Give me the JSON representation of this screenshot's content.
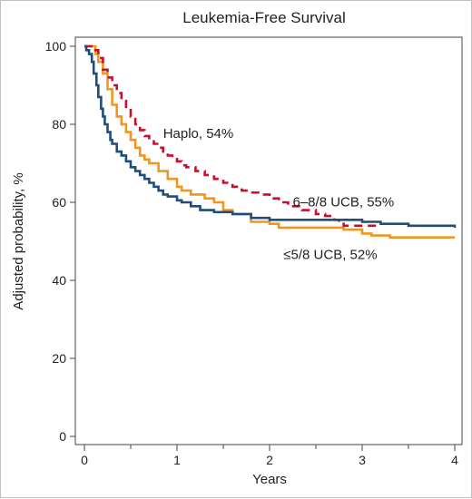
{
  "chart_data": {
    "type": "line",
    "title": "Leukemia-Free Survival",
    "xlabel": "Years",
    "ylabel": "Adjusted probability, %",
    "xlim": [
      0,
      4
    ],
    "ylim": [
      0,
      100
    ],
    "xticks": [
      "0",
      "1",
      "2",
      "3",
      "4"
    ],
    "yticks": [
      "0",
      "20",
      "40",
      "60",
      "80",
      "100"
    ],
    "grid": false,
    "legend": "none",
    "annotations": [
      {
        "id": "haplo",
        "text": "Haplo, 54%",
        "x": 0.85,
        "y": 76.5
      },
      {
        "id": "ucb68",
        "text": "6–8/8 UCB, 55%",
        "x": 2.25,
        "y": 59
      },
      {
        "id": "ucb5",
        "text": "≤5/8 UCB, 52%",
        "x": 2.15,
        "y": 45.5
      }
    ],
    "series": [
      {
        "id": "haplo",
        "color": "#c8102e",
        "style": "dashed",
        "points": [
          [
            0,
            100
          ],
          [
            0.1,
            99
          ],
          [
            0.15,
            97
          ],
          [
            0.2,
            94
          ],
          [
            0.25,
            92
          ],
          [
            0.3,
            90
          ],
          [
            0.35,
            88
          ],
          [
            0.4,
            86
          ],
          [
            0.45,
            84
          ],
          [
            0.5,
            82
          ],
          [
            0.55,
            80
          ],
          [
            0.6,
            78.5
          ],
          [
            0.65,
            77
          ],
          [
            0.7,
            76
          ],
          [
            0.75,
            75
          ],
          [
            0.8,
            74
          ],
          [
            0.85,
            73
          ],
          [
            0.9,
            72
          ],
          [
            0.95,
            71.5
          ],
          [
            1.0,
            70.5
          ],
          [
            1.05,
            69.5
          ],
          [
            1.1,
            69
          ],
          [
            1.2,
            68
          ],
          [
            1.3,
            67
          ],
          [
            1.4,
            66
          ],
          [
            1.5,
            65
          ],
          [
            1.6,
            64
          ],
          [
            1.7,
            63
          ],
          [
            1.8,
            62.5
          ],
          [
            1.9,
            62
          ],
          [
            2.0,
            61
          ],
          [
            2.1,
            60
          ],
          [
            2.2,
            59
          ],
          [
            2.35,
            58
          ],
          [
            2.5,
            57
          ],
          [
            2.6,
            56.5
          ],
          [
            2.7,
            55.5
          ],
          [
            2.75,
            54.5
          ],
          [
            2.8,
            54
          ],
          [
            3.2,
            54
          ],
          [
            3.2,
            54
          ]
        ]
      },
      {
        "id": "ucb68",
        "color": "#1f4e79",
        "style": "solid",
        "points": [
          [
            0,
            100
          ],
          [
            0.02,
            99
          ],
          [
            0.05,
            98
          ],
          [
            0.08,
            96
          ],
          [
            0.1,
            93
          ],
          [
            0.13,
            90
          ],
          [
            0.15,
            87
          ],
          [
            0.18,
            84
          ],
          [
            0.2,
            82
          ],
          [
            0.22,
            80
          ],
          [
            0.25,
            78
          ],
          [
            0.28,
            76
          ],
          [
            0.3,
            75
          ],
          [
            0.35,
            73
          ],
          [
            0.4,
            72
          ],
          [
            0.45,
            70.5
          ],
          [
            0.5,
            69
          ],
          [
            0.55,
            68
          ],
          [
            0.6,
            67
          ],
          [
            0.65,
            66
          ],
          [
            0.7,
            65
          ],
          [
            0.75,
            64
          ],
          [
            0.8,
            63
          ],
          [
            0.85,
            62
          ],
          [
            0.9,
            61.5
          ],
          [
            1.0,
            60.5
          ],
          [
            1.05,
            60
          ],
          [
            1.15,
            59
          ],
          [
            1.25,
            58
          ],
          [
            1.4,
            57.5
          ],
          [
            1.6,
            57
          ],
          [
            1.8,
            56
          ],
          [
            2.0,
            55.5
          ],
          [
            2.5,
            55.5
          ],
          [
            3.0,
            55
          ],
          [
            3.2,
            54.5
          ],
          [
            3.5,
            54
          ],
          [
            4.0,
            53.5
          ]
        ]
      },
      {
        "id": "ucb5",
        "color": "#f0961e",
        "style": "solid",
        "points": [
          [
            0,
            100
          ],
          [
            0.1,
            100
          ],
          [
            0.12,
            98
          ],
          [
            0.15,
            96
          ],
          [
            0.2,
            93
          ],
          [
            0.25,
            89
          ],
          [
            0.3,
            85
          ],
          [
            0.35,
            82
          ],
          [
            0.4,
            80
          ],
          [
            0.45,
            78
          ],
          [
            0.5,
            76
          ],
          [
            0.55,
            74
          ],
          [
            0.6,
            72
          ],
          [
            0.65,
            71
          ],
          [
            0.7,
            70
          ],
          [
            0.8,
            68
          ],
          [
            0.9,
            66
          ],
          [
            1.0,
            64
          ],
          [
            1.05,
            63
          ],
          [
            1.15,
            62
          ],
          [
            1.3,
            61
          ],
          [
            1.4,
            60
          ],
          [
            1.5,
            58
          ],
          [
            1.6,
            57
          ],
          [
            1.8,
            55
          ],
          [
            2.0,
            54.5
          ],
          [
            2.1,
            53.5
          ],
          [
            2.5,
            53.5
          ],
          [
            2.8,
            53
          ],
          [
            3.0,
            52
          ],
          [
            3.1,
            51.5
          ],
          [
            3.3,
            51
          ],
          [
            3.5,
            51
          ],
          [
            4.0,
            51
          ]
        ]
      }
    ]
  }
}
